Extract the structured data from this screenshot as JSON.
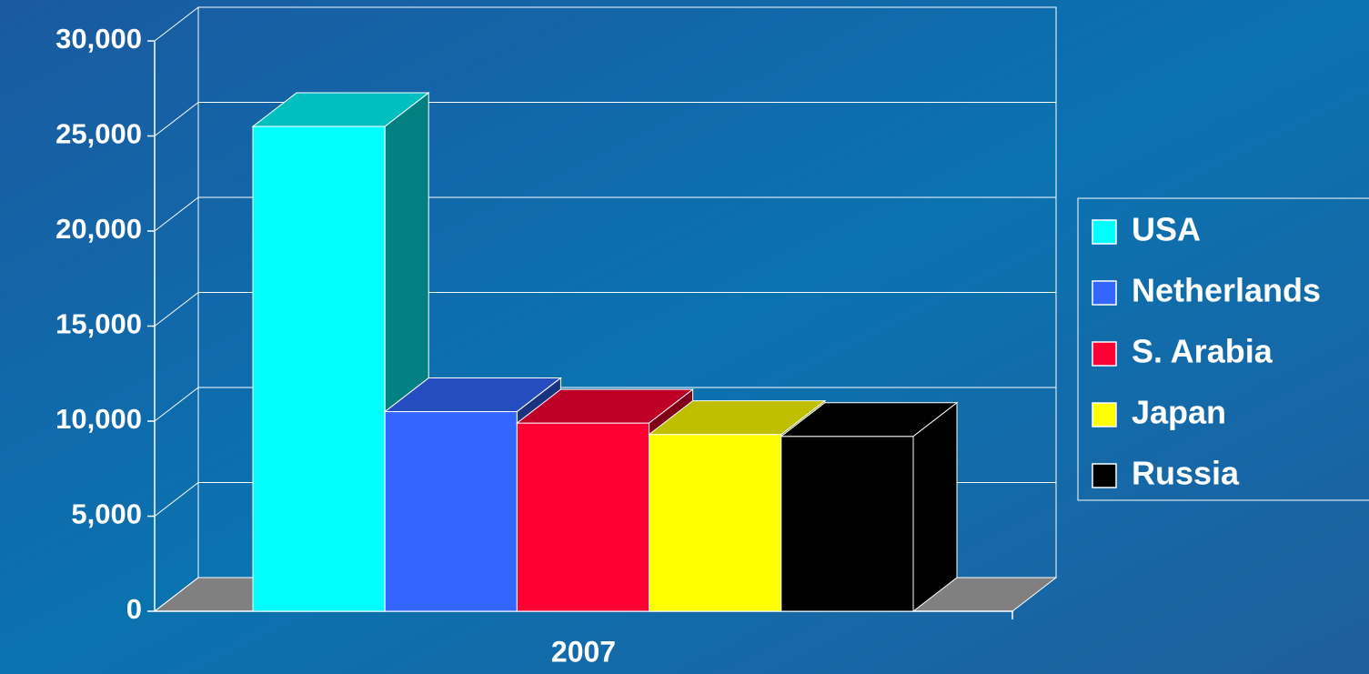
{
  "chart_data": {
    "type": "bar",
    "three_d": true,
    "categories": [
      "2007"
    ],
    "series": [
      {
        "name": "USA",
        "color": "#00ffff",
        "values": [
          25500
        ]
      },
      {
        "name": "Netherlands",
        "color": "#3366ff",
        "values": [
          10500
        ]
      },
      {
        "name": "S. Arabia",
        "color": "#ff0033",
        "values": [
          9900
        ]
      },
      {
        "name": "Japan",
        "color": "#ffff00",
        "values": [
          9300
        ]
      },
      {
        "name": "Russia",
        "color": "#000000",
        "values": [
          9200
        ]
      }
    ],
    "ylim": [
      0,
      30000
    ],
    "yticks": [
      0,
      {
        "value": 5000,
        "label": "5,000"
      },
      {
        "value": 10000,
        "label": "10,000"
      },
      {
        "value": 15000,
        "label": "15,000"
      },
      {
        "value": 20000,
        "label": "20,000"
      },
      {
        "value": 25000,
        "label": "25,000"
      },
      {
        "value": 30000,
        "label": "30,000"
      }
    ],
    "grid": true,
    "legend": "right"
  }
}
